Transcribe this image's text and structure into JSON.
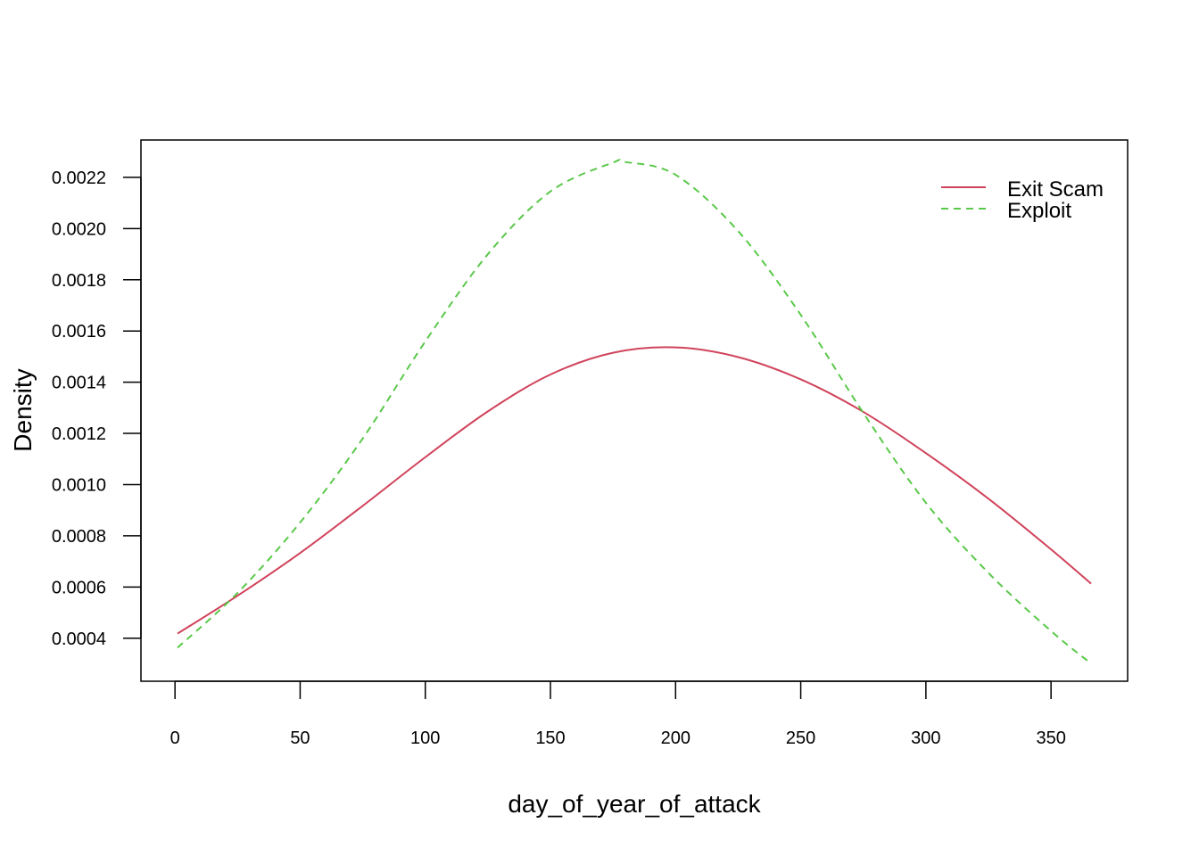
{
  "chart_data": {
    "type": "line",
    "title": "",
    "xlabel": "day_of_year_of_attack",
    "ylabel": "Density",
    "xlim": [
      -13.6,
      380.6
    ],
    "ylim": [
      0.000232,
      0.002346
    ],
    "x_ticks": [
      0,
      50,
      100,
      150,
      200,
      250,
      300,
      350
    ],
    "x_tick_labels": [
      "0",
      "50",
      "100",
      "150",
      "200",
      "250",
      "300",
      "350"
    ],
    "y_ticks": [
      0.0004,
      0.0006,
      0.0008,
      0.001,
      0.0012,
      0.0014,
      0.0016,
      0.0018,
      0.002,
      0.0022
    ],
    "y_tick_labels": [
      "0.0004",
      "0.0006",
      "0.0008",
      "0.0010",
      "0.0012",
      "0.0014",
      "0.0016",
      "0.0018",
      "0.0020",
      "0.0022"
    ],
    "grid": false,
    "legend_position": "top-right",
    "series": [
      {
        "name": "Exit Scam",
        "color": "#d0435b",
        "dash": "solid",
        "x": [
          1,
          25,
          50,
          75,
          100,
          125,
          150,
          175,
          200,
          225,
          250,
          275,
          300,
          325,
          350,
          366
        ],
        "y": [
          0.000418,
          0.000566,
          0.000733,
          0.000917,
          0.001107,
          0.001286,
          0.00143,
          0.001515,
          0.001536,
          0.001498,
          0.001411,
          0.001284,
          0.001123,
          0.000945,
          0.000747,
          0.000613
        ]
      },
      {
        "name": "Exploit",
        "color": "#5ac84a",
        "dash": "dashed",
        "x": [
          1,
          25,
          50,
          75,
          100,
          125,
          150,
          175,
          180,
          200,
          225,
          250,
          275,
          300,
          325,
          350,
          366
        ],
        "y": [
          0.000363,
          0.000577,
          0.000852,
          0.00118,
          0.001559,
          0.0019,
          0.002145,
          0.002258,
          0.00226,
          0.00221,
          0.00199,
          0.001663,
          0.00128,
          0.000929,
          0.000655,
          0.000428,
          0.000301
        ]
      }
    ]
  }
}
